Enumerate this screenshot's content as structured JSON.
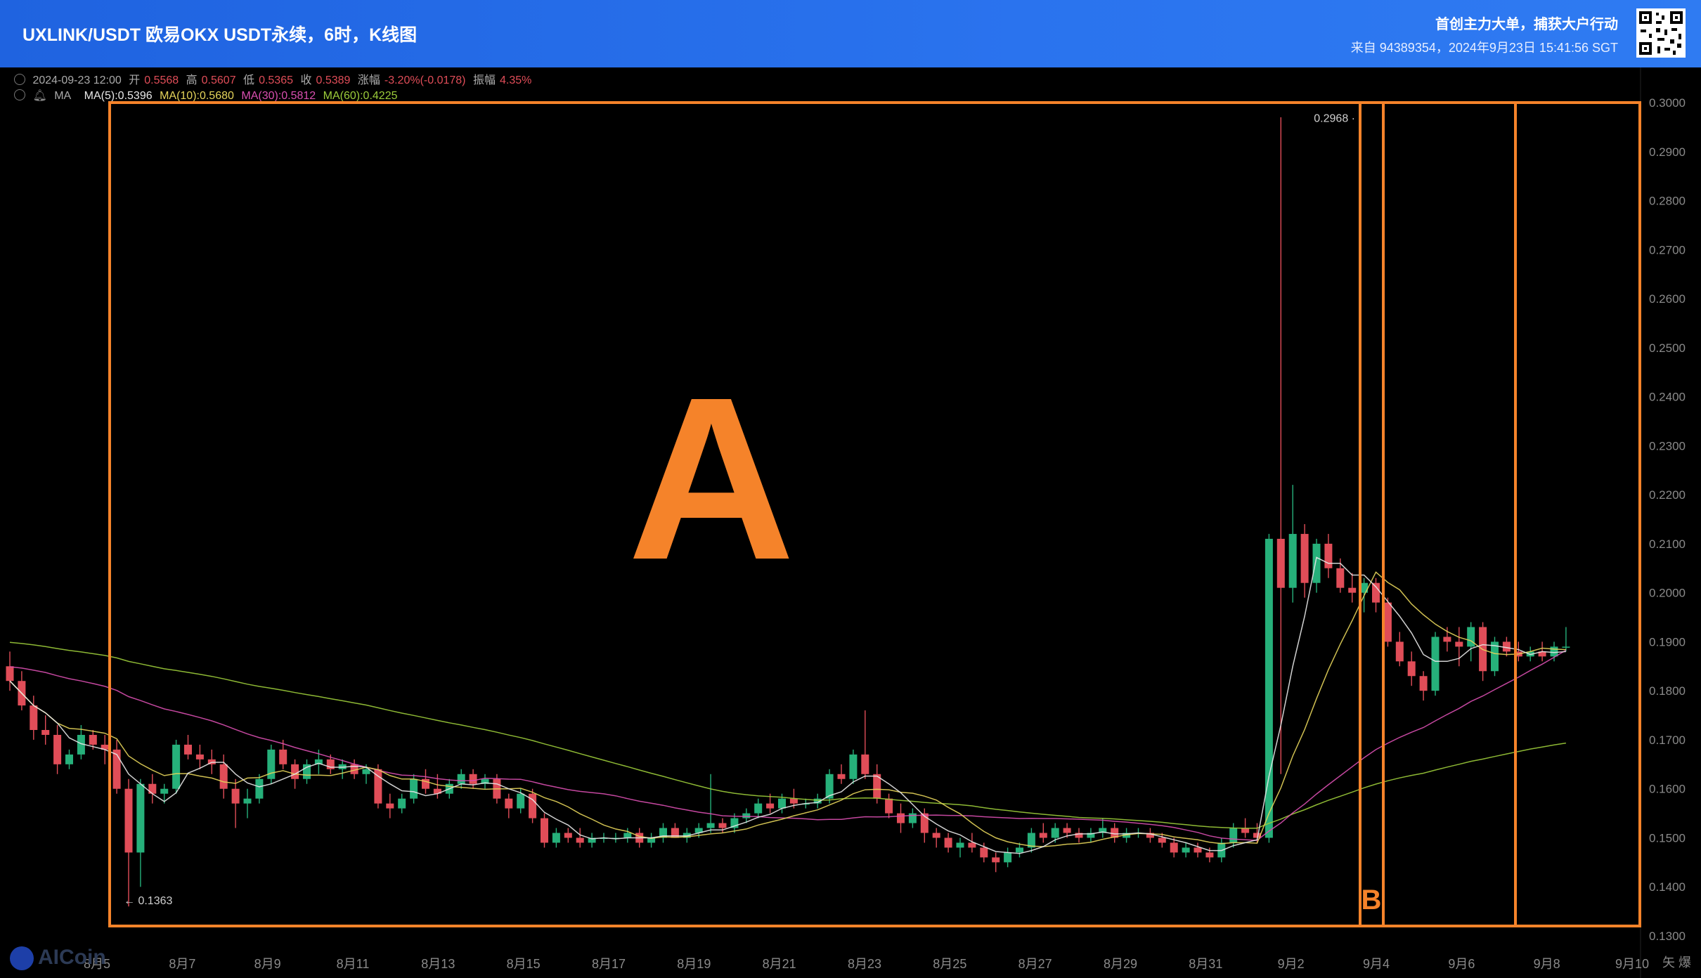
{
  "header": {
    "title": "UXLINK/USDT 欧易OKX USDT永续，6时，K线图",
    "promo": "首创主力大单，捕获大户行动",
    "source": "来自 94389354，2024年9月23日 15:41:56 SGT"
  },
  "info": {
    "datetime": "2024-09-23 12:00",
    "open_label": "开",
    "open": "0.5568",
    "high_label": "高",
    "high": "0.5607",
    "low_label": "低",
    "low": "0.5365",
    "close_label": "收",
    "close": "0.5389",
    "change_label": "涨幅",
    "change": "-3.20%(-0.0178)",
    "amp_label": "振幅",
    "amp": "4.35%"
  },
  "ma": {
    "label": "MA",
    "ma5": "MA(5):0.5396",
    "ma10": "MA(10):0.5680",
    "ma30": "MA(30):0.5812",
    "ma60": "MA(60):0.4225"
  },
  "colors": {
    "up": "#26b07a",
    "down": "#e04d58",
    "ma5": "#e8e8e8",
    "ma10": "#e5d45a",
    "ma30": "#d94fb0",
    "ma60": "#9ccc3a",
    "annotation": "#f5832a",
    "header": "#2a6fe8"
  },
  "annotations": {
    "box_a": "A",
    "box_b": "B"
  },
  "watermark": "AICoin",
  "corner_glyphs": "⽮ 爆",
  "chart_data": {
    "type": "candlestick",
    "y_axis": {
      "min": 0.13,
      "max": 0.3,
      "ticks": [
        "0.3000",
        "0.2900",
        "0.2800",
        "0.2700",
        "0.2600",
        "0.2500",
        "0.2400",
        "0.2300",
        "0.2200",
        "0.2100",
        "0.2000",
        "0.1900",
        "0.1800",
        "0.1700",
        "0.1600",
        "0.1500",
        "0.1400",
        "0.1300"
      ]
    },
    "x_axis": {
      "labels": [
        "8月5",
        "8月7",
        "8月9",
        "8月11",
        "8月13",
        "8月15",
        "8月17",
        "8月19",
        "8月21",
        "8月23",
        "8月25",
        "8月27",
        "8月29",
        "8月31",
        "9月2",
        "9月4",
        "9月6",
        "9月8",
        "9月10"
      ]
    },
    "markers": {
      "high": "0.2968",
      "low": "0.1363"
    },
    "ohlc": [
      [
        0.185,
        0.188,
        0.18,
        0.182
      ],
      [
        0.182,
        0.184,
        0.176,
        0.177
      ],
      [
        0.177,
        0.179,
        0.17,
        0.172
      ],
      [
        0.172,
        0.175,
        0.169,
        0.171
      ],
      [
        0.171,
        0.173,
        0.163,
        0.165
      ],
      [
        0.165,
        0.168,
        0.164,
        0.167
      ],
      [
        0.167,
        0.173,
        0.166,
        0.171
      ],
      [
        0.171,
        0.172,
        0.168,
        0.169
      ],
      [
        0.169,
        0.171,
        0.165,
        0.168
      ],
      [
        0.168,
        0.17,
        0.159,
        0.16
      ],
      [
        0.16,
        0.162,
        0.136,
        0.147
      ],
      [
        0.147,
        0.162,
        0.14,
        0.161
      ],
      [
        0.161,
        0.163,
        0.157,
        0.159
      ],
      [
        0.159,
        0.161,
        0.157,
        0.16
      ],
      [
        0.16,
        0.17,
        0.159,
        0.169
      ],
      [
        0.169,
        0.171,
        0.166,
        0.167
      ],
      [
        0.167,
        0.169,
        0.164,
        0.166
      ],
      [
        0.166,
        0.168,
        0.163,
        0.165
      ],
      [
        0.165,
        0.167,
        0.158,
        0.16
      ],
      [
        0.16,
        0.162,
        0.152,
        0.157
      ],
      [
        0.157,
        0.16,
        0.154,
        0.158
      ],
      [
        0.158,
        0.163,
        0.157,
        0.162
      ],
      [
        0.162,
        0.169,
        0.161,
        0.168
      ],
      [
        0.168,
        0.17,
        0.164,
        0.165
      ],
      [
        0.165,
        0.166,
        0.16,
        0.162
      ],
      [
        0.162,
        0.166,
        0.161,
        0.165
      ],
      [
        0.165,
        0.168,
        0.163,
        0.166
      ],
      [
        0.166,
        0.167,
        0.163,
        0.164
      ],
      [
        0.164,
        0.166,
        0.162,
        0.165
      ],
      [
        0.165,
        0.166,
        0.162,
        0.163
      ],
      [
        0.163,
        0.165,
        0.161,
        0.164
      ],
      [
        0.164,
        0.165,
        0.156,
        0.157
      ],
      [
        0.157,
        0.159,
        0.154,
        0.156
      ],
      [
        0.156,
        0.159,
        0.155,
        0.158
      ],
      [
        0.158,
        0.163,
        0.157,
        0.162
      ],
      [
        0.162,
        0.164,
        0.159,
        0.16
      ],
      [
        0.16,
        0.163,
        0.158,
        0.159
      ],
      [
        0.159,
        0.162,
        0.158,
        0.161
      ],
      [
        0.161,
        0.164,
        0.16,
        0.163
      ],
      [
        0.163,
        0.164,
        0.16,
        0.161
      ],
      [
        0.161,
        0.163,
        0.16,
        0.162
      ],
      [
        0.162,
        0.163,
        0.157,
        0.158
      ],
      [
        0.158,
        0.159,
        0.154,
        0.156
      ],
      [
        0.156,
        0.16,
        0.155,
        0.159
      ],
      [
        0.159,
        0.16,
        0.153,
        0.154
      ],
      [
        0.154,
        0.155,
        0.148,
        0.149
      ],
      [
        0.149,
        0.152,
        0.148,
        0.151
      ],
      [
        0.151,
        0.152,
        0.149,
        0.15
      ],
      [
        0.15,
        0.152,
        0.148,
        0.149
      ],
      [
        0.149,
        0.151,
        0.148,
        0.15
      ],
      [
        0.15,
        0.151,
        0.149,
        0.15
      ],
      [
        0.15,
        0.151,
        0.149,
        0.15
      ],
      [
        0.15,
        0.152,
        0.149,
        0.151
      ],
      [
        0.151,
        0.152,
        0.148,
        0.149
      ],
      [
        0.149,
        0.151,
        0.148,
        0.15
      ],
      [
        0.15,
        0.153,
        0.149,
        0.152
      ],
      [
        0.152,
        0.153,
        0.15,
        0.15
      ],
      [
        0.15,
        0.152,
        0.149,
        0.151
      ],
      [
        0.151,
        0.153,
        0.15,
        0.152
      ],
      [
        0.152,
        0.163,
        0.151,
        0.153
      ],
      [
        0.153,
        0.154,
        0.151,
        0.152
      ],
      [
        0.152,
        0.155,
        0.151,
        0.154
      ],
      [
        0.154,
        0.156,
        0.153,
        0.155
      ],
      [
        0.155,
        0.158,
        0.154,
        0.157
      ],
      [
        0.157,
        0.159,
        0.155,
        0.156
      ],
      [
        0.156,
        0.159,
        0.155,
        0.158
      ],
      [
        0.158,
        0.16,
        0.156,
        0.157
      ],
      [
        0.157,
        0.158,
        0.156,
        0.157
      ],
      [
        0.157,
        0.159,
        0.156,
        0.158
      ],
      [
        0.158,
        0.164,
        0.157,
        0.163
      ],
      [
        0.163,
        0.165,
        0.161,
        0.162
      ],
      [
        0.162,
        0.168,
        0.161,
        0.167
      ],
      [
        0.167,
        0.176,
        0.162,
        0.163
      ],
      [
        0.163,
        0.165,
        0.157,
        0.158
      ],
      [
        0.158,
        0.159,
        0.154,
        0.155
      ],
      [
        0.155,
        0.157,
        0.151,
        0.153
      ],
      [
        0.153,
        0.156,
        0.152,
        0.155
      ],
      [
        0.155,
        0.156,
        0.149,
        0.151
      ],
      [
        0.151,
        0.152,
        0.148,
        0.15
      ],
      [
        0.15,
        0.151,
        0.147,
        0.148
      ],
      [
        0.148,
        0.15,
        0.146,
        0.149
      ],
      [
        0.149,
        0.151,
        0.147,
        0.148
      ],
      [
        0.148,
        0.149,
        0.145,
        0.146
      ],
      [
        0.146,
        0.147,
        0.143,
        0.145
      ],
      [
        0.145,
        0.148,
        0.144,
        0.147
      ],
      [
        0.147,
        0.149,
        0.146,
        0.148
      ],
      [
        0.148,
        0.152,
        0.147,
        0.151
      ],
      [
        0.151,
        0.153,
        0.149,
        0.15
      ],
      [
        0.15,
        0.153,
        0.149,
        0.152
      ],
      [
        0.152,
        0.153,
        0.15,
        0.151
      ],
      [
        0.151,
        0.152,
        0.149,
        0.15
      ],
      [
        0.15,
        0.152,
        0.149,
        0.151
      ],
      [
        0.151,
        0.154,
        0.15,
        0.152
      ],
      [
        0.152,
        0.153,
        0.149,
        0.15
      ],
      [
        0.15,
        0.152,
        0.149,
        0.151
      ],
      [
        0.151,
        0.152,
        0.15,
        0.151
      ],
      [
        0.151,
        0.152,
        0.149,
        0.15
      ],
      [
        0.15,
        0.151,
        0.148,
        0.149
      ],
      [
        0.149,
        0.15,
        0.146,
        0.147
      ],
      [
        0.147,
        0.149,
        0.146,
        0.148
      ],
      [
        0.148,
        0.149,
        0.146,
        0.147
      ],
      [
        0.147,
        0.148,
        0.145,
        0.146
      ],
      [
        0.146,
        0.15,
        0.145,
        0.149
      ],
      [
        0.149,
        0.153,
        0.148,
        0.152
      ],
      [
        0.152,
        0.154,
        0.15,
        0.151
      ],
      [
        0.151,
        0.153,
        0.149,
        0.15
      ],
      [
        0.15,
        0.212,
        0.149,
        0.211
      ],
      [
        0.211,
        0.297,
        0.163,
        0.201
      ],
      [
        0.201,
        0.222,
        0.198,
        0.212
      ],
      [
        0.212,
        0.214,
        0.199,
        0.202
      ],
      [
        0.202,
        0.211,
        0.2,
        0.21
      ],
      [
        0.21,
        0.212,
        0.203,
        0.205
      ],
      [
        0.205,
        0.207,
        0.2,
        0.201
      ],
      [
        0.201,
        0.204,
        0.198,
        0.2
      ],
      [
        0.2,
        0.203,
        0.196,
        0.202
      ],
      [
        0.202,
        0.203,
        0.196,
        0.198
      ],
      [
        0.198,
        0.199,
        0.189,
        0.19
      ],
      [
        0.19,
        0.192,
        0.185,
        0.186
      ],
      [
        0.186,
        0.188,
        0.181,
        0.183
      ],
      [
        0.183,
        0.184,
        0.178,
        0.18
      ],
      [
        0.18,
        0.192,
        0.179,
        0.191
      ],
      [
        0.191,
        0.193,
        0.188,
        0.19
      ],
      [
        0.19,
        0.193,
        0.185,
        0.189
      ],
      [
        0.189,
        0.194,
        0.186,
        0.193
      ],
      [
        0.193,
        0.194,
        0.182,
        0.184
      ],
      [
        0.184,
        0.191,
        0.183,
        0.19
      ],
      [
        0.19,
        0.191,
        0.187,
        0.188
      ],
      [
        0.188,
        0.19,
        0.186,
        0.187
      ],
      [
        0.187,
        0.189,
        0.186,
        0.188
      ],
      [
        0.188,
        0.19,
        0.186,
        0.187
      ],
      [
        0.187,
        0.19,
        0.186,
        0.189
      ],
      [
        0.189,
        0.193,
        0.188,
        0.189
      ]
    ]
  }
}
